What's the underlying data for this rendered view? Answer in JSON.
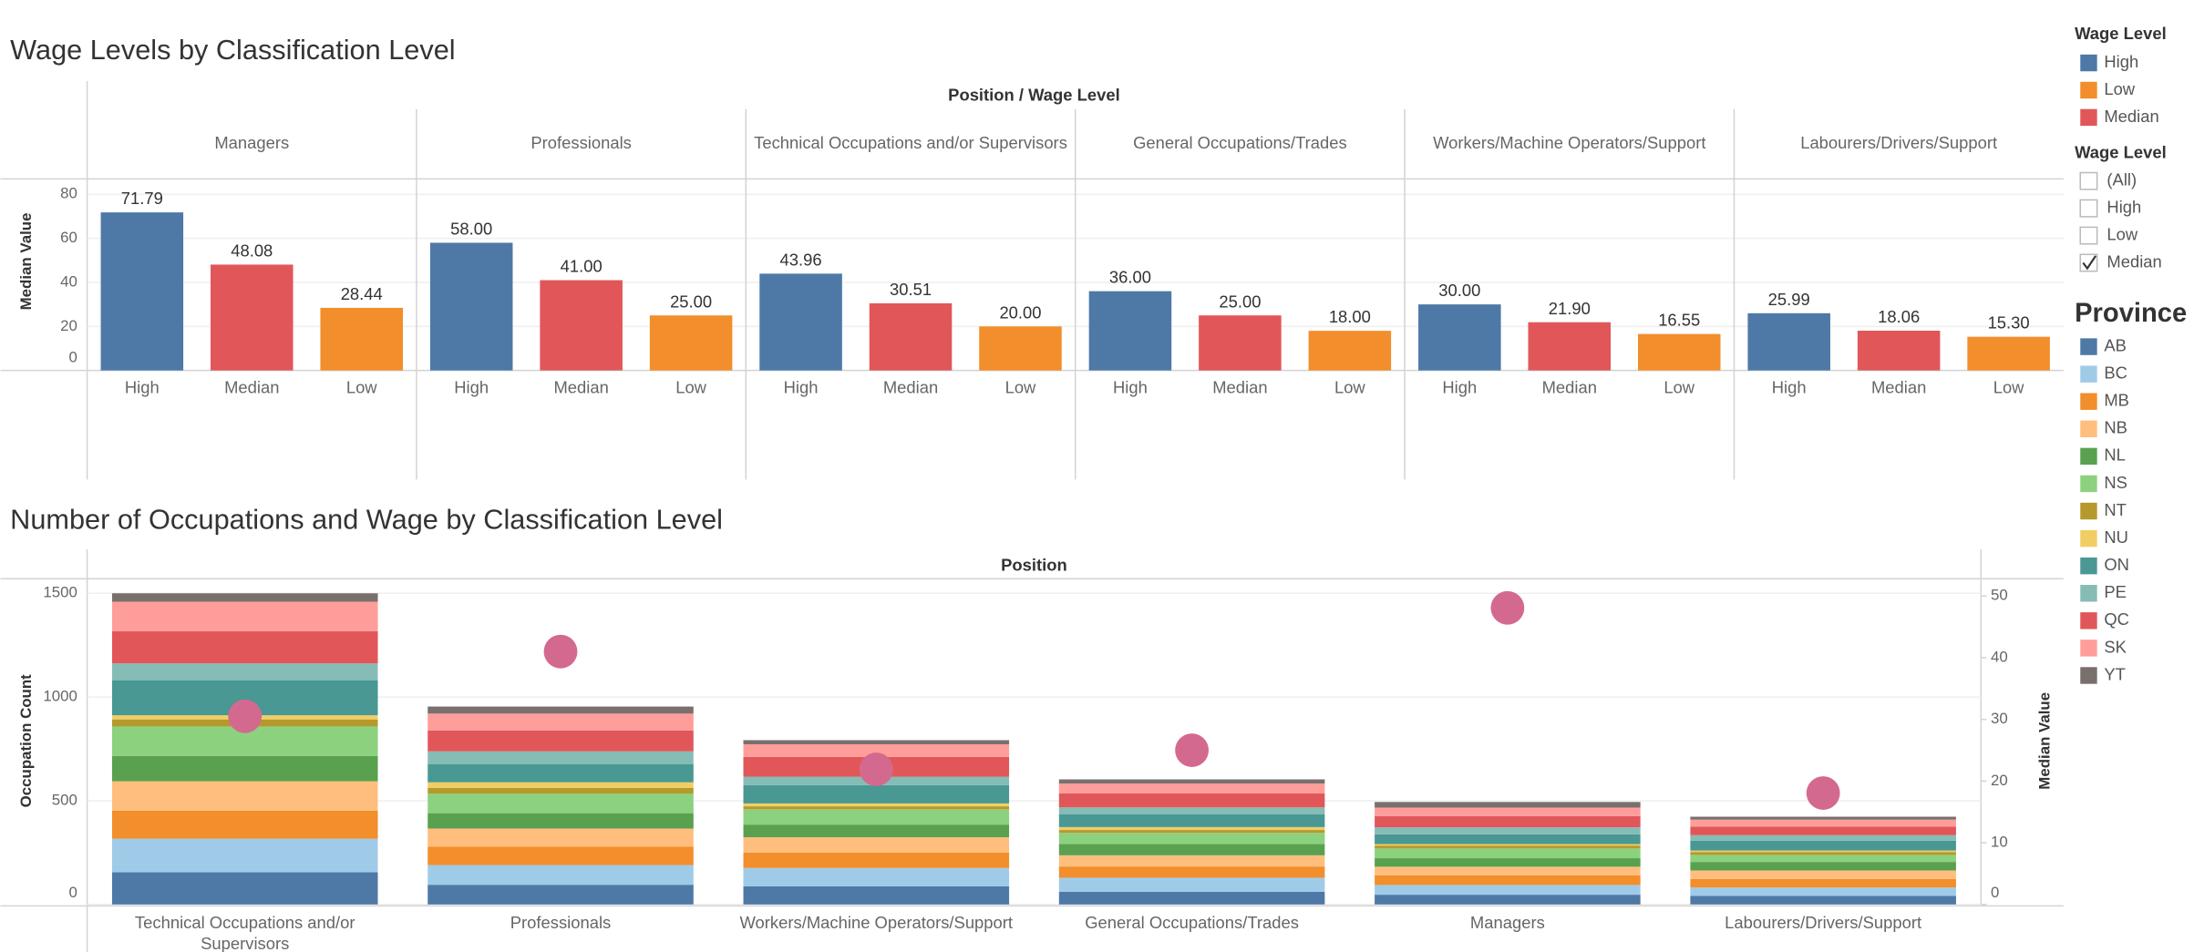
{
  "chart_data": [
    {
      "type": "bar",
      "title": "Wage Levels by Classification Level",
      "header": "Position / Wage Level",
      "ylabel": "Median Value",
      "legend_title": "Wage Level",
      "legend_sort": "alphabetical",
      "categories": [
        "Managers",
        "Professionals",
        "Technical Occupations and/or Supervisors",
        "General Occupations/Trades",
        "Workers/Machine Operators/Support",
        "Labourers/Drivers/Support"
      ],
      "series": [
        {
          "name": "High",
          "color": "#4e79a7",
          "values": [
            71.79,
            58,
            43.96,
            36,
            30,
            25.99
          ],
          "value_labels": [
            "71.79",
            "58.00",
            "43.96",
            "36.00",
            "30.00",
            "25.99"
          ]
        },
        {
          "name": "Median",
          "color": "#e15759",
          "values": [
            48.08,
            41,
            30.51,
            25,
            21.9,
            18.06
          ],
          "value_labels": [
            "48.08",
            "41.00",
            "30.51",
            "25.00",
            "21.90",
            "18.06"
          ]
        },
        {
          "name": "Low",
          "color": "#f28e2b",
          "values": [
            28.44,
            25,
            20,
            18,
            16.55,
            15.3
          ],
          "value_labels": [
            "28.44",
            "25.00",
            "20.00",
            "18.00",
            "16.55",
            "15.30"
          ]
        }
      ],
      "ylim": [
        0,
        80
      ],
      "yticks": [
        0,
        20,
        40,
        60,
        80
      ],
      "grid": true
    },
    {
      "type": "bar",
      "stacked": true,
      "title": "Number of Occupations and Wage by Classification Level",
      "header": "Position",
      "ylabel": "Occupation Count",
      "y2label": "Median Value",
      "legend_title": "Province",
      "categories": [
        "Technical Occupations and/or Supervisors",
        "Professionals",
        "Workers/Machine Operators/Support",
        "General Occupations/Trades",
        "Managers",
        "Labourers/Drivers/Support"
      ],
      "series": [
        {
          "name": "AB",
          "color": "#4e79a7",
          "values": [
            155,
            95,
            88,
            61,
            47,
            41
          ]
        },
        {
          "name": "BC",
          "color": "#a0cbe8",
          "values": [
            162,
            95,
            88,
            68,
            47,
            41
          ]
        },
        {
          "name": "MB",
          "color": "#f28e2b",
          "values": [
            135,
            88,
            74,
            54,
            47,
            41
          ]
        },
        {
          "name": "NB",
          "color": "#ffbe7d",
          "values": [
            142,
            88,
            74,
            54,
            41,
            41
          ]
        },
        {
          "name": "NL",
          "color": "#59a14f",
          "values": [
            122,
            74,
            61,
            54,
            41,
            41
          ]
        },
        {
          "name": "NS",
          "color": "#8cd17d",
          "values": [
            142,
            95,
            74,
            54,
            47,
            34
          ]
        },
        {
          "name": "NT",
          "color": "#b6992d",
          "values": [
            34,
            27,
            14,
            14,
            14,
            14
          ]
        },
        {
          "name": "NU",
          "color": "#f1ce63",
          "values": [
            20,
            27,
            14,
            14,
            7,
            7
          ]
        },
        {
          "name": "ON",
          "color": "#499894",
          "values": [
            169,
            88,
            88,
            61,
            47,
            47
          ]
        },
        {
          "name": "PE",
          "color": "#86bcb6",
          "values": [
            81,
            61,
            41,
            34,
            34,
            27
          ]
        },
        {
          "name": "QC",
          "color": "#e15759",
          "values": [
            155,
            101,
            95,
            68,
            54,
            41
          ]
        },
        {
          "name": "SK",
          "color": "#ff9d9a",
          "values": [
            142,
            81,
            61,
            47,
            41,
            34
          ]
        },
        {
          "name": "YT",
          "color": "#79706e",
          "values": [
            41,
            34,
            20,
            20,
            27,
            14
          ]
        },
        {
          "type": "scatter",
          "axis": "y2",
          "color": "#d4698f",
          "values": [
            30.51,
            41,
            21.9,
            25,
            48.08,
            18.06
          ]
        }
      ],
      "ylim": [
        0,
        1570
      ],
      "yticks": [
        0,
        500,
        1000,
        1500
      ],
      "y2lim": [
        0,
        52.8
      ],
      "y2ticks": [
        0,
        10,
        20,
        30,
        40,
        50
      ],
      "grid": true
    }
  ],
  "filter": {
    "title": "Wage Level",
    "options": [
      "(All)",
      "High",
      "Low",
      "Median"
    ],
    "selected": [
      false,
      false,
      false,
      true
    ]
  }
}
